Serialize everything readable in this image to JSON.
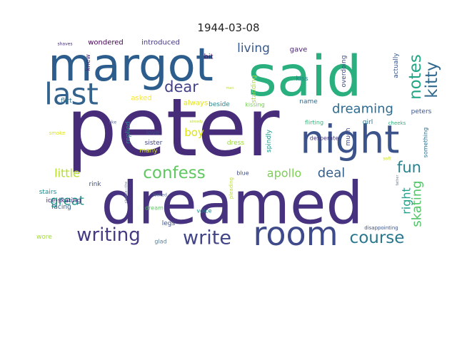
{
  "chart_data": {
    "type": "wordcloud",
    "title": "1944-03-08",
    "background": "#ffffff",
    "words": [
      {
        "text": "peter",
        "weight": 100,
        "color": "#472c7a",
        "rotate": false
      },
      {
        "text": "dreamed",
        "weight": 78,
        "color": "#46327e",
        "rotate": false
      },
      {
        "text": "said",
        "weight": 64,
        "color": "#2ab07f",
        "rotate": false
      },
      {
        "text": "margot",
        "weight": 58,
        "color": "#2c5d8d",
        "rotate": false
      },
      {
        "text": "night",
        "weight": 44,
        "color": "#3b528b",
        "rotate": false
      },
      {
        "text": "room",
        "weight": 40,
        "color": "#3e4a89",
        "rotate": false
      },
      {
        "text": "last",
        "weight": 36,
        "color": "#33638d",
        "rotate": false
      },
      {
        "text": "writing",
        "weight": 22,
        "color": "#443a83",
        "rotate": false
      },
      {
        "text": "write",
        "weight": 22,
        "color": "#414487",
        "rotate": false
      },
      {
        "text": "confess",
        "weight": 20,
        "color": "#60c860",
        "rotate": false
      },
      {
        "text": "course",
        "weight": 20,
        "color": "#29788e",
        "rotate": false
      },
      {
        "text": "notes",
        "weight": 20,
        "color": "#21a685",
        "rotate": true
      },
      {
        "text": "kitty",
        "weight": 20,
        "color": "#31688e",
        "rotate": true
      },
      {
        "text": "dear",
        "weight": 19,
        "color": "#424086",
        "rotate": false
      },
      {
        "text": "fun",
        "weight": 18,
        "color": "#25838e",
        "rotate": false
      },
      {
        "text": "great",
        "weight": 17,
        "color": "#1f978b",
        "rotate": false
      },
      {
        "text": "dreaming",
        "weight": 16,
        "color": "#2f6b8e",
        "rotate": false
      },
      {
        "text": "skating",
        "weight": 16,
        "color": "#52c569",
        "rotate": true
      },
      {
        "text": "deal",
        "weight": 16,
        "color": "#34608d",
        "rotate": false
      },
      {
        "text": "little",
        "weight": 14,
        "color": "#b5de2b",
        "rotate": false
      },
      {
        "text": "living",
        "weight": 14,
        "color": "#38598c",
        "rotate": false
      },
      {
        "text": "apollo",
        "weight": 14,
        "color": "#7ad151",
        "rotate": false
      },
      {
        "text": "boy",
        "weight": 13,
        "color": "#dde318",
        "rotate": false
      },
      {
        "text": "right",
        "weight": 13,
        "color": "#1fa088",
        "rotate": true
      },
      {
        "text": "introduced",
        "weight": 10,
        "color": "#443983",
        "rotate": false
      },
      {
        "text": "wondered",
        "weight": 10,
        "color": "#440154",
        "rotate": false
      },
      {
        "text": "gave",
        "weight": 10,
        "color": "#481f70",
        "rotate": false
      },
      {
        "text": "flirt",
        "weight": 9,
        "color": "#2d708e",
        "rotate": false
      },
      {
        "text": "bit",
        "weight": 9,
        "color": "#471365",
        "rotate": false
      },
      {
        "text": "kiss",
        "weight": 9,
        "color": "#26828e",
        "rotate": false
      },
      {
        "text": "actually",
        "weight": 9,
        "color": "#39568c",
        "rotate": true
      },
      {
        "text": "knew",
        "weight": 9,
        "color": "#482878",
        "rotate": true
      },
      {
        "text": "asked",
        "weight": 9,
        "color": "#fde725",
        "rotate": false
      },
      {
        "text": "always",
        "weight": 9,
        "color": "#e5e419",
        "rotate": false
      },
      {
        "text": "standing",
        "weight": 9,
        "color": "#a8db34",
        "rotate": true
      },
      {
        "text": "overdoing",
        "weight": 9,
        "color": "#3e4989",
        "rotate": true
      },
      {
        "text": "name",
        "weight": 9,
        "color": "#31688e",
        "rotate": false
      },
      {
        "text": "beside",
        "weight": 9,
        "color": "#23888e",
        "rotate": false
      },
      {
        "text": "kissing",
        "weight": 8,
        "color": "#75d054",
        "rotate": false
      },
      {
        "text": "peters",
        "weight": 9,
        "color": "#3a548c",
        "rotate": false
      },
      {
        "text": "replied",
        "weight": 9,
        "color": "#1e9c89",
        "rotate": true
      },
      {
        "text": "love",
        "weight": 9,
        "color": "#3f4788",
        "rotate": false
      },
      {
        "text": "sister",
        "weight": 9,
        "color": "#404588",
        "rotate": false
      },
      {
        "text": "many",
        "weight": 9,
        "color": "#d2e21b",
        "rotate": false
      },
      {
        "text": "girl",
        "weight": 9,
        "color": "#2b748e",
        "rotate": false
      },
      {
        "text": "cheeks",
        "weight": 7,
        "color": "#2db27d",
        "rotate": false
      },
      {
        "text": "much",
        "weight": 9,
        "color": "#404688",
        "rotate": true
      },
      {
        "text": "flirting",
        "weight": 8,
        "color": "#31b57b",
        "rotate": false
      },
      {
        "text": "something",
        "weight": 8,
        "color": "#2d718e",
        "rotate": true
      },
      {
        "text": "spindly",
        "weight": 9,
        "color": "#1f958b",
        "rotate": true
      },
      {
        "text": "dress",
        "weight": 9,
        "color": "#9bd93c",
        "rotate": false
      },
      {
        "text": "desperate",
        "weight": 8,
        "color": "#453882",
        "rotate": false
      },
      {
        "text": "soft",
        "weight": 5,
        "color": "#c8e020",
        "rotate": false
      },
      {
        "text": "blue",
        "weight": 8,
        "color": "#3d4d8a",
        "rotate": false
      },
      {
        "text": "rink",
        "weight": 9,
        "color": "#3b518b",
        "rotate": false
      },
      {
        "text": "stairs",
        "weight": 9,
        "color": "#23898e",
        "rotate": false
      },
      {
        "text": "ice-skating",
        "weight": 9,
        "color": "#482576",
        "rotate": false
      },
      {
        "text": "facing",
        "weight": 9,
        "color": "#34608d",
        "rotate": false
      },
      {
        "text": "wore",
        "weight": 9,
        "color": "#a5db36",
        "rotate": false
      },
      {
        "text": "dream",
        "weight": 8,
        "color": "#5ec962",
        "rotate": false
      },
      {
        "text": "legs",
        "weight": 9,
        "color": "#3b528b",
        "rotate": false
      },
      {
        "text": "glad",
        "weight": 8,
        "color": "#5c7e9a",
        "rotate": false
      },
      {
        "text": "voice",
        "weight": 8,
        "color": "#218f8d",
        "rotate": false
      },
      {
        "text": "pleading",
        "weight": 7,
        "color": "#b8de29",
        "rotate": true
      },
      {
        "text": "disappointing",
        "weight": 6,
        "color": "#3b528b",
        "rotate": false
      },
      {
        "text": "father",
        "weight": 5,
        "color": "#6b7fa0",
        "rotate": true
      },
      {
        "text": "looked",
        "weight": 5,
        "color": "#5b6f9a",
        "rotate": false
      },
      {
        "text": "cheeks—the",
        "weight": 5,
        "color": "#6b7fa0",
        "rotate": true
      },
      {
        "text": "like",
        "weight": 5,
        "color": "#5b6f9a",
        "rotate": false
      },
      {
        "text": "smoke",
        "weight": 6,
        "color": "#dde318",
        "rotate": false
      },
      {
        "text": "already",
        "weight": 4,
        "color": "#c2df23",
        "rotate": false
      },
      {
        "text": "shaves",
        "weight": 5,
        "color": "#46307e",
        "rotate": false
      },
      {
        "text": "man",
        "weight": 4,
        "color": "#c2df23",
        "rotate": false
      }
    ]
  }
}
